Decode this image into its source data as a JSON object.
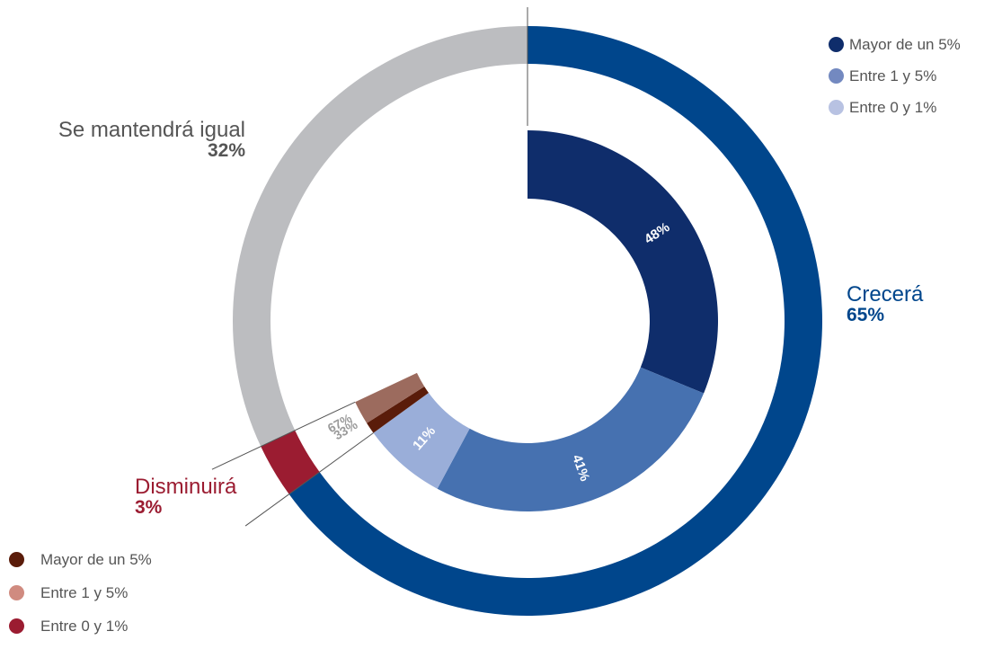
{
  "chart_data": {
    "type": "donut",
    "outer_ring": [
      {
        "name": "Crecerá",
        "value": 65,
        "label": "65%",
        "color": "#00468c"
      },
      {
        "name": "Disminuirá",
        "value": 3,
        "label": "3%",
        "color": "#9b1c31"
      },
      {
        "name": "Se mantendrá igual",
        "value": 32,
        "label": "32%",
        "color": "#bcbdc0"
      }
    ],
    "inner_ring": [
      {
        "parent": "Crecerá",
        "value": 48,
        "label": "48%",
        "color": "#0f2d6b"
      },
      {
        "parent": "Crecerá",
        "value": 41,
        "label": "41%",
        "color": "#4671b0"
      },
      {
        "parent": "Crecerá",
        "value": 11,
        "label": "11%",
        "color": "#9aaed9"
      },
      {
        "parent": "Disminuirá",
        "value": 33,
        "label": "33%",
        "color": "#5a1c0a"
      },
      {
        "parent": "Disminuirá",
        "value": 67,
        "label": "67%",
        "color": "#9c6b5e"
      }
    ],
    "legend_crecera": [
      {
        "label": "Mayor de un 5%",
        "color": "#0f2d6b"
      },
      {
        "label": "Entre 1 y 5%",
        "color": "#7389c0"
      },
      {
        "label": "Entre 0 y 1%",
        "color": "#b8c2e2"
      }
    ],
    "legend_disminuira": [
      {
        "label": "Mayor de un 5%",
        "color": "#5a1c0a"
      },
      {
        "label": "Entre 1 y 5%",
        "color": "#d08b80"
      },
      {
        "label": "Entre 0 y 1%",
        "color": "#9b1c31"
      }
    ]
  }
}
